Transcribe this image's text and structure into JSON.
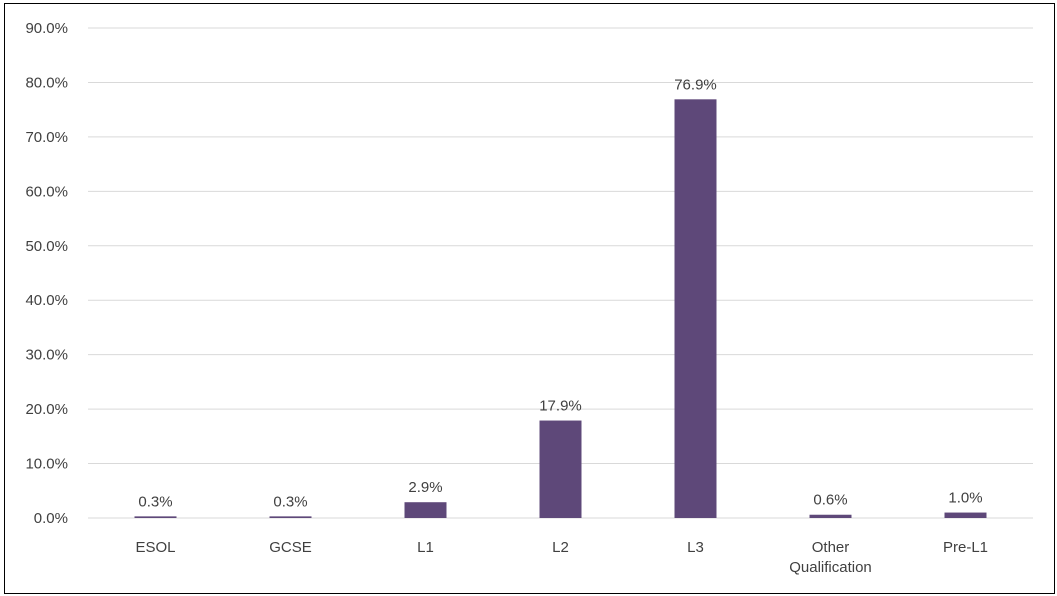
{
  "chart_data": {
    "type": "bar",
    "categories": [
      "ESOL",
      "GCSE",
      "L1",
      "L2",
      "L3",
      "Other\nQualification",
      "Pre-L1"
    ],
    "values": [
      0.3,
      0.3,
      2.9,
      17.9,
      76.9,
      0.6,
      1.0
    ],
    "data_labels": [
      "0.3%",
      "0.3%",
      "2.9%",
      "17.9%",
      "76.9%",
      "0.6%",
      "1.0%"
    ],
    "yticks": [
      "0.0%",
      "10.0%",
      "20.0%",
      "30.0%",
      "40.0%",
      "50.0%",
      "60.0%",
      "70.0%",
      "80.0%",
      "90.0%"
    ],
    "ylim": [
      0,
      90
    ],
    "grid": true,
    "legend": "none",
    "bar_color": "#5e4879",
    "grid_color": "#d9d9d9",
    "text_color": "#404040"
  }
}
